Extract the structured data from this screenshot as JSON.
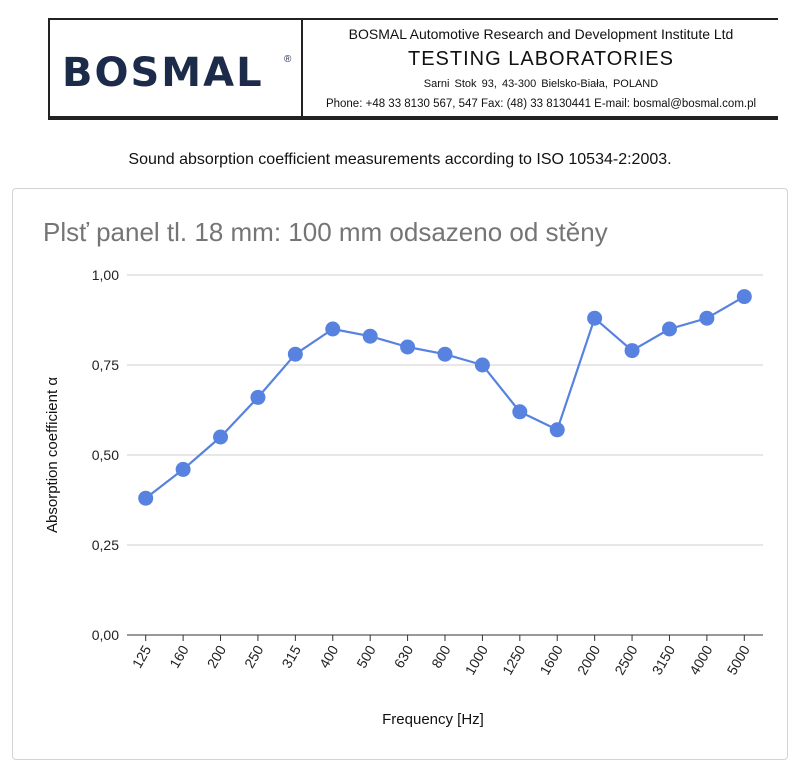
{
  "header": {
    "logo_text": "BOSMAL",
    "logo_mark": "®",
    "organization": "BOSMAL Automotive Research and Development Institute Ltd",
    "department": "TESTING LABORATORIES",
    "address": "Sarni Stok 93,   43-300 Bielsko-Biała,   POLAND",
    "contacts": "Phone: +48 33 8130 567,  547  Fax: (48) 33 8130441  E-mail: bosmal@bosmal.com.pl"
  },
  "subtitle": "Sound absorption coefficient measurements according to ISO 10534-2:2003.",
  "colors": {
    "brand": "#1c2b4a",
    "series": "#5882e0",
    "grid": "#cfcfcf",
    "title": "#757575"
  },
  "chart_data": {
    "type": "line",
    "title": "Plsť panel tl. 18 mm: 100 mm odsazeno od stěny",
    "xlabel": "Frequency [Hz]",
    "ylabel": "Absorption coefficient α",
    "categories": [
      "125",
      "160",
      "200",
      "250",
      "315",
      "400",
      "500",
      "630",
      "800",
      "1000",
      "1250",
      "1600",
      "2000",
      "2500",
      "3150",
      "4000",
      "5000"
    ],
    "series": [
      {
        "name": "Absorption coefficient",
        "values": [
          0.38,
          0.46,
          0.55,
          0.66,
          0.78,
          0.85,
          0.83,
          0.8,
          0.78,
          0.75,
          0.62,
          0.57,
          0.88,
          0.79,
          0.85,
          0.88,
          0.94
        ]
      }
    ],
    "ylim": [
      0,
      1
    ],
    "yticks": [
      0,
      0.25,
      0.5,
      0.75,
      1
    ],
    "ytick_labels": [
      "0,00",
      "0,25",
      "0,50",
      "0,75",
      "1,00"
    ],
    "grid": true,
    "legend": "none"
  }
}
